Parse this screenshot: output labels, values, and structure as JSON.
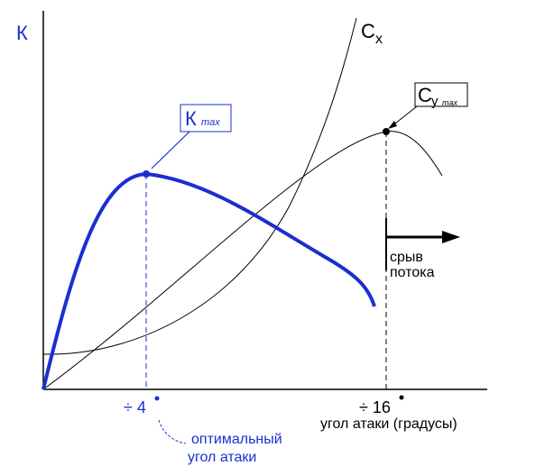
{
  "axis": {
    "y_label": "К",
    "x_label": "угол атаки (градусы)",
    "ticks": [
      "÷ 4",
      "÷ 16"
    ]
  },
  "curves": {
    "cx": {
      "symbol": "C",
      "subscript": "x"
    },
    "cy": {
      "symbol": "C",
      "subscript": "y",
      "max": "max"
    },
    "k": {
      "symbol": "К",
      "max": "max"
    }
  },
  "annotations": {
    "stall": [
      "срыв",
      "потока"
    ],
    "optimal": [
      "оптимальный",
      "угол атаки"
    ]
  }
}
